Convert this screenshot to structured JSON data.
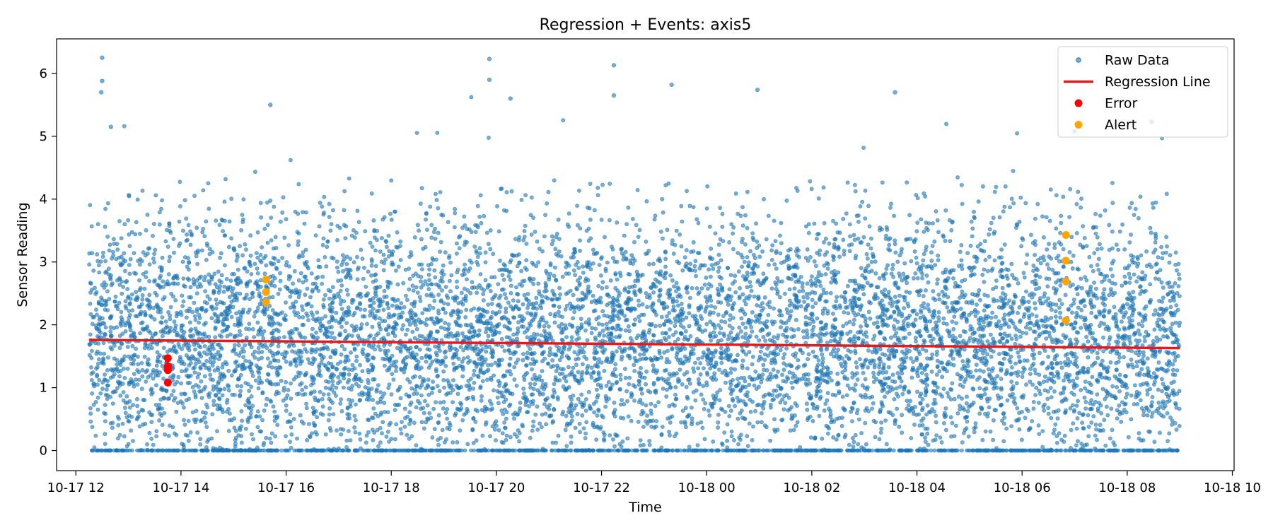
{
  "chart_data": {
    "type": "scatter",
    "title": "Regression + Events: axis5",
    "xlabel": "Time",
    "ylabel": "Sensor Reading",
    "x_axis_kind": "time",
    "xlim": [
      "2025-10-17 11:38",
      "2025-10-18 10:02"
    ],
    "ylim": [
      -0.32,
      6.55
    ],
    "x_ticks": [
      {
        "t": "2025-10-17 12:00",
        "label": "10-17 12"
      },
      {
        "t": "2025-10-17 14:00",
        "label": "10-17 14"
      },
      {
        "t": "2025-10-17 16:00",
        "label": "10-17 16"
      },
      {
        "t": "2025-10-17 18:00",
        "label": "10-17 18"
      },
      {
        "t": "2025-10-17 20:00",
        "label": "10-17 20"
      },
      {
        "t": "2025-10-17 22:00",
        "label": "10-17 22"
      },
      {
        "t": "2025-10-18 00:00",
        "label": "10-18 00"
      },
      {
        "t": "2025-10-18 02:00",
        "label": "10-18 02"
      },
      {
        "t": "2025-10-18 04:00",
        "label": "10-18 04"
      },
      {
        "t": "2025-10-18 06:00",
        "label": "10-18 06"
      },
      {
        "t": "2025-10-18 08:00",
        "label": "10-18 08"
      },
      {
        "t": "2025-10-18 10:00",
        "label": "10-18 10"
      }
    ],
    "y_ticks": [
      0,
      1,
      2,
      3,
      4,
      5,
      6
    ],
    "grid": false,
    "legend_position": "top-right",
    "series": [
      {
        "name": "Raw Data",
        "kind": "scatter",
        "color": "#1f77b4",
        "opacity": 0.6,
        "x_range": [
          "2025-10-17 12:15",
          "2025-10-18 09:00"
        ],
        "y_range": [
          0,
          6.25
        ],
        "typical_band": [
          0,
          3.8
        ],
        "visible_peaks": [
          {
            "t": "2025-10-17 12:30",
            "y": 6.25
          },
          {
            "t": "2025-10-17 12:30",
            "y": 5.88
          },
          {
            "t": "2025-10-17 12:29",
            "y": 5.7
          },
          {
            "t": "2025-10-17 12:40",
            "y": 5.15
          },
          {
            "t": "2025-10-17 15:42",
            "y": 5.5
          },
          {
            "t": "2025-10-17 19:52",
            "y": 6.23
          },
          {
            "t": "2025-10-17 19:52",
            "y": 5.9
          },
          {
            "t": "2025-10-17 20:16",
            "y": 5.6
          },
          {
            "t": "2025-10-17 22:14",
            "y": 6.13
          },
          {
            "t": "2025-10-17 22:14",
            "y": 5.65
          },
          {
            "t": "2025-10-17 23:20",
            "y": 5.82
          },
          {
            "t": "2025-10-18 00:58",
            "y": 5.74
          },
          {
            "t": "2025-10-18 03:35",
            "y": 5.7
          },
          {
            "t": "2025-10-18 07:00",
            "y": 5.08
          },
          {
            "t": "2025-10-18 08:28",
            "y": 5.23
          }
        ]
      },
      {
        "name": "Regression Line",
        "kind": "line",
        "color": "#e41a1c",
        "points": [
          {
            "t": "2025-10-17 12:15",
            "y": 1.76
          },
          {
            "t": "2025-10-18 09:00",
            "y": 1.63
          }
        ]
      },
      {
        "name": "Error",
        "kind": "scatter",
        "color": "#ff0000",
        "points": [
          {
            "t": "2025-10-17 13:45",
            "y": 1.47
          },
          {
            "t": "2025-10-17 13:45",
            "y": 1.34
          },
          {
            "t": "2025-10-17 13:45",
            "y": 1.28
          },
          {
            "t": "2025-10-17 13:45",
            "y": 1.08
          }
        ]
      },
      {
        "name": "Alert",
        "kind": "scatter",
        "color": "#ffa500",
        "points": [
          {
            "t": "2025-10-17 15:37",
            "y": 2.72
          },
          {
            "t": "2025-10-17 15:37",
            "y": 2.52
          },
          {
            "t": "2025-10-17 15:37",
            "y": 2.36
          },
          {
            "t": "2025-10-18 06:50",
            "y": 3.43
          },
          {
            "t": "2025-10-18 06:50",
            "y": 3.02
          },
          {
            "t": "2025-10-18 06:50",
            "y": 2.69
          },
          {
            "t": "2025-10-18 06:50",
            "y": 2.07
          }
        ]
      }
    ]
  }
}
